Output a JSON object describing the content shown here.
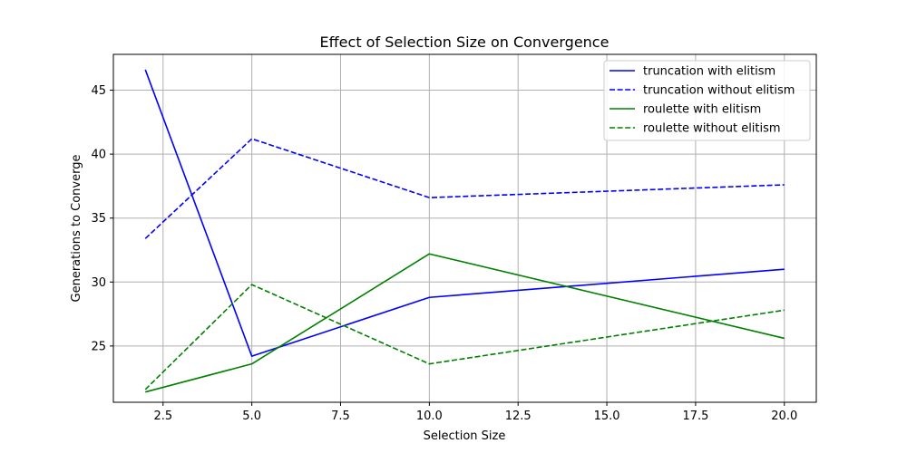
{
  "chart_data": {
    "type": "line",
    "title": "Effect of Selection Size on Convergence",
    "xlabel": "Selection Size",
    "ylabel": "Generations to Converge",
    "x": [
      2,
      5,
      10,
      20
    ],
    "xlim": [
      1.1,
      20.9
    ],
    "ylim": [
      20.6,
      47.8
    ],
    "xticks": [
      2.5,
      5.0,
      7.5,
      10.0,
      12.5,
      15.0,
      17.5,
      20.0
    ],
    "xtick_labels": [
      "2.5",
      "5.0",
      "7.5",
      "10.0",
      "12.5",
      "15.0",
      "17.5",
      "20.0"
    ],
    "yticks": [
      25,
      30,
      35,
      40,
      45
    ],
    "ytick_labels": [
      "25",
      "30",
      "35",
      "40",
      "45"
    ],
    "grid": true,
    "legend_position": "top-right",
    "series": [
      {
        "name": "truncation with elitism",
        "values": [
          46.6,
          24.2,
          28.8,
          31.0
        ],
        "color": "#0000ff",
        "dash": "solid"
      },
      {
        "name": "truncation without elitism",
        "values": [
          33.4,
          41.2,
          36.6,
          37.6
        ],
        "color": "#0000ff",
        "dash": "dashed"
      },
      {
        "name": "roulette with elitism",
        "values": [
          21.4,
          23.6,
          32.2,
          25.6
        ],
        "color": "#008000",
        "dash": "solid"
      },
      {
        "name": "roulette without elitism",
        "values": [
          21.6,
          29.8,
          23.6,
          27.8
        ],
        "color": "#008000",
        "dash": "dashed"
      }
    ]
  }
}
